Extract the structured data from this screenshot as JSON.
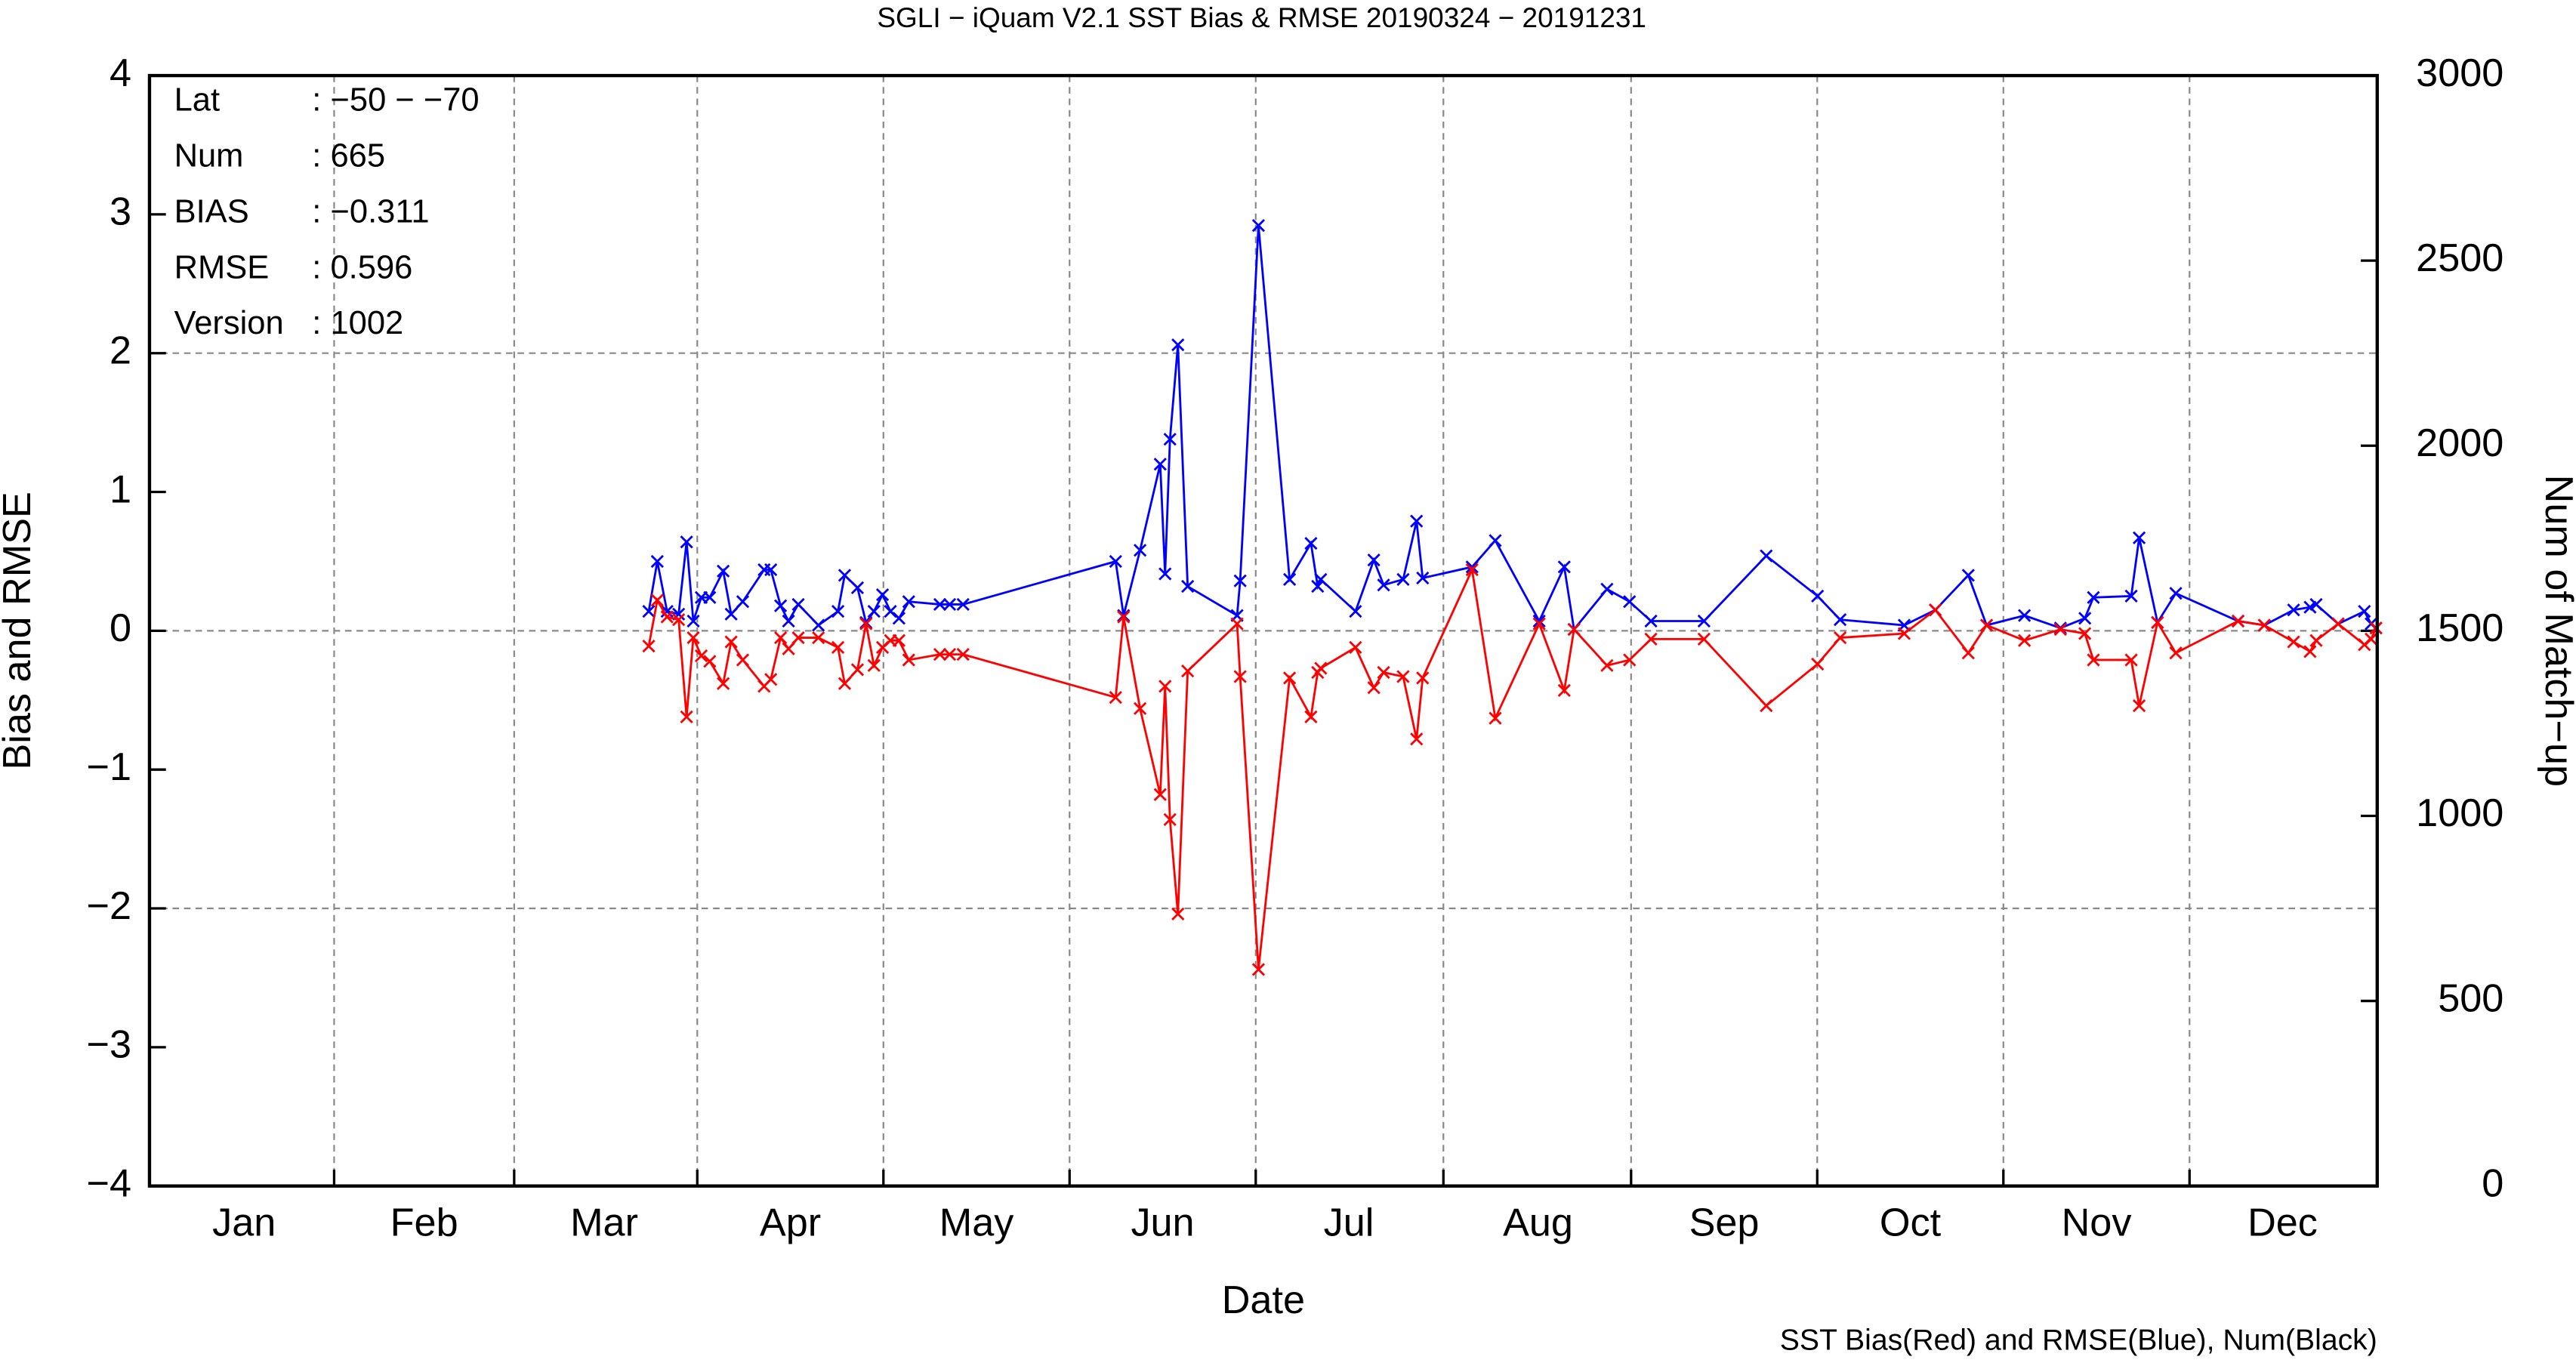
{
  "chart_data": {
    "type": "line",
    "title": "SGLI − iQuam V2.1 SST Bias & RMSE 20190324 − 20191231",
    "xlabel": "Date",
    "ylabel": "Bias and RMSE",
    "y2label": "Num of Match−up",
    "footnote": "SST Bias(Red) and RMSE(Blue), Num(Black)",
    "info": [
      {
        "label": "Lat",
        "value": ": −50 − −70"
      },
      {
        "label": "Num",
        "value": ": 665"
      },
      {
        "label": "BIAS",
        "value": ": −0.311"
      },
      {
        "label": "RMSE",
        "value": ": 0.596"
      },
      {
        "label": "Version",
        "value": ": 1002"
      }
    ],
    "xlim": [
      0,
      365
    ],
    "xticks": [
      {
        "value": 15.5,
        "label": "Jan"
      },
      {
        "value": 45,
        "label": "Feb"
      },
      {
        "value": 74.5,
        "label": "Mar"
      },
      {
        "value": 105,
        "label": "Apr"
      },
      {
        "value": 135.5,
        "label": "May"
      },
      {
        "value": 166,
        "label": "Jun"
      },
      {
        "value": 196.5,
        "label": "Jul"
      },
      {
        "value": 227.5,
        "label": "Aug"
      },
      {
        "value": 258,
        "label": "Sep"
      },
      {
        "value": 288.5,
        "label": "Oct"
      },
      {
        "value": 319,
        "label": "Nov"
      },
      {
        "value": 349.5,
        "label": "Dec"
      }
    ],
    "ylim": [
      -4,
      4
    ],
    "yticks": [
      {
        "value": -4,
        "label": "−4"
      },
      {
        "value": -3,
        "label": "−3"
      },
      {
        "value": -2,
        "label": "−2"
      },
      {
        "value": -1,
        "label": "−1"
      },
      0,
      1,
      2,
      3,
      4
    ],
    "ygrid": [
      -2,
      0,
      2
    ],
    "y2lim": [
      0,
      3000
    ],
    "y2ticks": [
      0,
      500,
      1000,
      1500,
      2000,
      2500,
      3000
    ],
    "marker": "x",
    "x": [
      81.8,
      83.2,
      84.8,
      86.7,
      88.0,
      89.1,
      90.4,
      91.8,
      94.0,
      95.3,
      97.2,
      100.7,
      101.8,
      103.4,
      104.7,
      106.3,
      109.6,
      112.8,
      113.9,
      116.0,
      117.4,
      118.7,
      120.1,
      121.4,
      122.8,
      124.4,
      129.5,
      131.1,
      133.3,
      158.3,
      159.6,
      162.3,
      165.6,
      166.4,
      167.2,
      168.5,
      170.1,
      178.2,
      178.7,
      181.7,
      186.8,
      190.3,
      191.4,
      191.9,
      197.6,
      200.6,
      202.2,
      205.4,
      207.6,
      208.6,
      216.7,
      220.5,
      227.7,
      231.8,
      233.4,
      238.8,
      242.5,
      246.0,
      254.7,
      264.9,
      273.3,
      277.0,
      287.5,
      292.6,
      298.0,
      301.0,
      307.2,
      313.1,
      317.1,
      318.5,
      324.7,
      326.0,
      329.0,
      332.0,
      342.2,
      346.5,
      351.3,
      354.0,
      355.0,
      358.6,
      362.9,
      364.0,
      364.8
    ],
    "series": [
      {
        "name": "RMSE",
        "color": "#0000ff",
        "values": [
          0.14,
          0.5,
          0.14,
          0.12,
          0.64,
          0.07,
          0.24,
          0.24,
          0.43,
          0.12,
          0.21,
          0.44,
          0.44,
          0.18,
          0.07,
          0.19,
          0.04,
          0.14,
          0.4,
          0.31,
          0.06,
          0.14,
          0.26,
          0.14,
          0.09,
          0.21,
          0.19,
          0.19,
          0.19,
          0.5,
          0.11,
          0.58,
          1.2,
          0.41,
          1.38,
          2.06,
          0.32,
          0.11,
          0.36,
          2.92,
          0.37,
          0.63,
          0.32,
          0.37,
          0.14,
          0.51,
          0.33,
          0.37,
          0.79,
          0.38,
          0.46,
          0.65,
          0.07,
          0.46,
          0.01,
          0.3,
          0.21,
          0.07,
          0.07,
          0.54,
          0.25,
          0.08,
          0.04,
          0.15,
          0.4,
          0.04,
          0.11,
          0.02,
          0.09,
          0.24,
          0.25,
          0.67,
          0.06,
          0.27,
          0.07,
          0.04,
          0.15,
          0.17,
          0.19,
          0.05,
          0.14,
          0.05,
          0.02
        ]
      },
      {
        "name": "Bias",
        "color": "#ff0000",
        "values": [
          -0.11,
          0.22,
          0.1,
          0.08,
          -0.62,
          -0.05,
          -0.18,
          -0.22,
          -0.38,
          -0.08,
          -0.21,
          -0.4,
          -0.35,
          -0.05,
          -0.13,
          -0.05,
          -0.05,
          -0.12,
          -0.38,
          -0.28,
          0.05,
          -0.25,
          -0.12,
          -0.07,
          -0.07,
          -0.21,
          -0.17,
          -0.17,
          -0.17,
          -0.48,
          0.1,
          -0.56,
          -1.18,
          -0.4,
          -1.36,
          -2.04,
          -0.29,
          0.05,
          -0.33,
          -2.44,
          -0.34,
          -0.62,
          -0.3,
          -0.27,
          -0.12,
          -0.41,
          -0.3,
          -0.33,
          -0.78,
          -0.34,
          0.44,
          -0.63,
          0.05,
          -0.43,
          0.01,
          -0.25,
          -0.21,
          -0.06,
          -0.06,
          -0.54,
          -0.24,
          -0.05,
          -0.02,
          0.15,
          -0.16,
          0.04,
          -0.07,
          0.01,
          -0.02,
          -0.21,
          -0.21,
          -0.54,
          0.06,
          -0.16,
          0.07,
          0.04,
          -0.08,
          -0.15,
          -0.07,
          0.05,
          -0.1,
          -0.06,
          0.02
        ]
      }
    ]
  }
}
